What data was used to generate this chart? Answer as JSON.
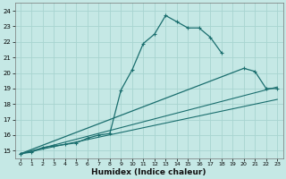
{
  "title": "",
  "xlabel": "Humidex (Indice chaleur)",
  "xlim": [
    -0.5,
    23.5
  ],
  "ylim": [
    14.5,
    24.5
  ],
  "xticks": [
    0,
    1,
    2,
    3,
    4,
    5,
    6,
    7,
    8,
    9,
    10,
    11,
    12,
    13,
    14,
    15,
    16,
    17,
    18,
    19,
    20,
    21,
    22,
    23
  ],
  "yticks": [
    15,
    16,
    17,
    18,
    19,
    20,
    21,
    22,
    23,
    24
  ],
  "background_color": "#c5e8e5",
  "grid_color": "#a8d4d0",
  "line_color": "#1a6e6e",
  "line1": {
    "x": [
      0,
      1,
      2,
      3,
      4,
      5,
      6,
      7,
      8,
      9,
      10,
      11,
      12,
      13,
      14,
      15,
      16,
      17,
      18
    ],
    "y": [
      14.8,
      14.9,
      15.2,
      15.3,
      15.4,
      15.5,
      15.8,
      16.0,
      16.1,
      18.9,
      20.2,
      21.9,
      22.5,
      23.7,
      23.3,
      22.9,
      22.9,
      22.3,
      21.3
    ]
  },
  "line2": {
    "x": [
      0,
      20,
      21,
      22,
      23
    ],
    "y": [
      14.8,
      20.3,
      20.1,
      19.0,
      19.0
    ]
  },
  "line3_straight": {
    "x": [
      0,
      23
    ],
    "y": [
      14.8,
      19.1
    ]
  },
  "line4_straight": {
    "x": [
      0,
      23
    ],
    "y": [
      14.8,
      18.3
    ]
  },
  "tick_fontsize": 5.0,
  "xlabel_fontsize": 6.5,
  "xlabel_fontweight": "bold"
}
